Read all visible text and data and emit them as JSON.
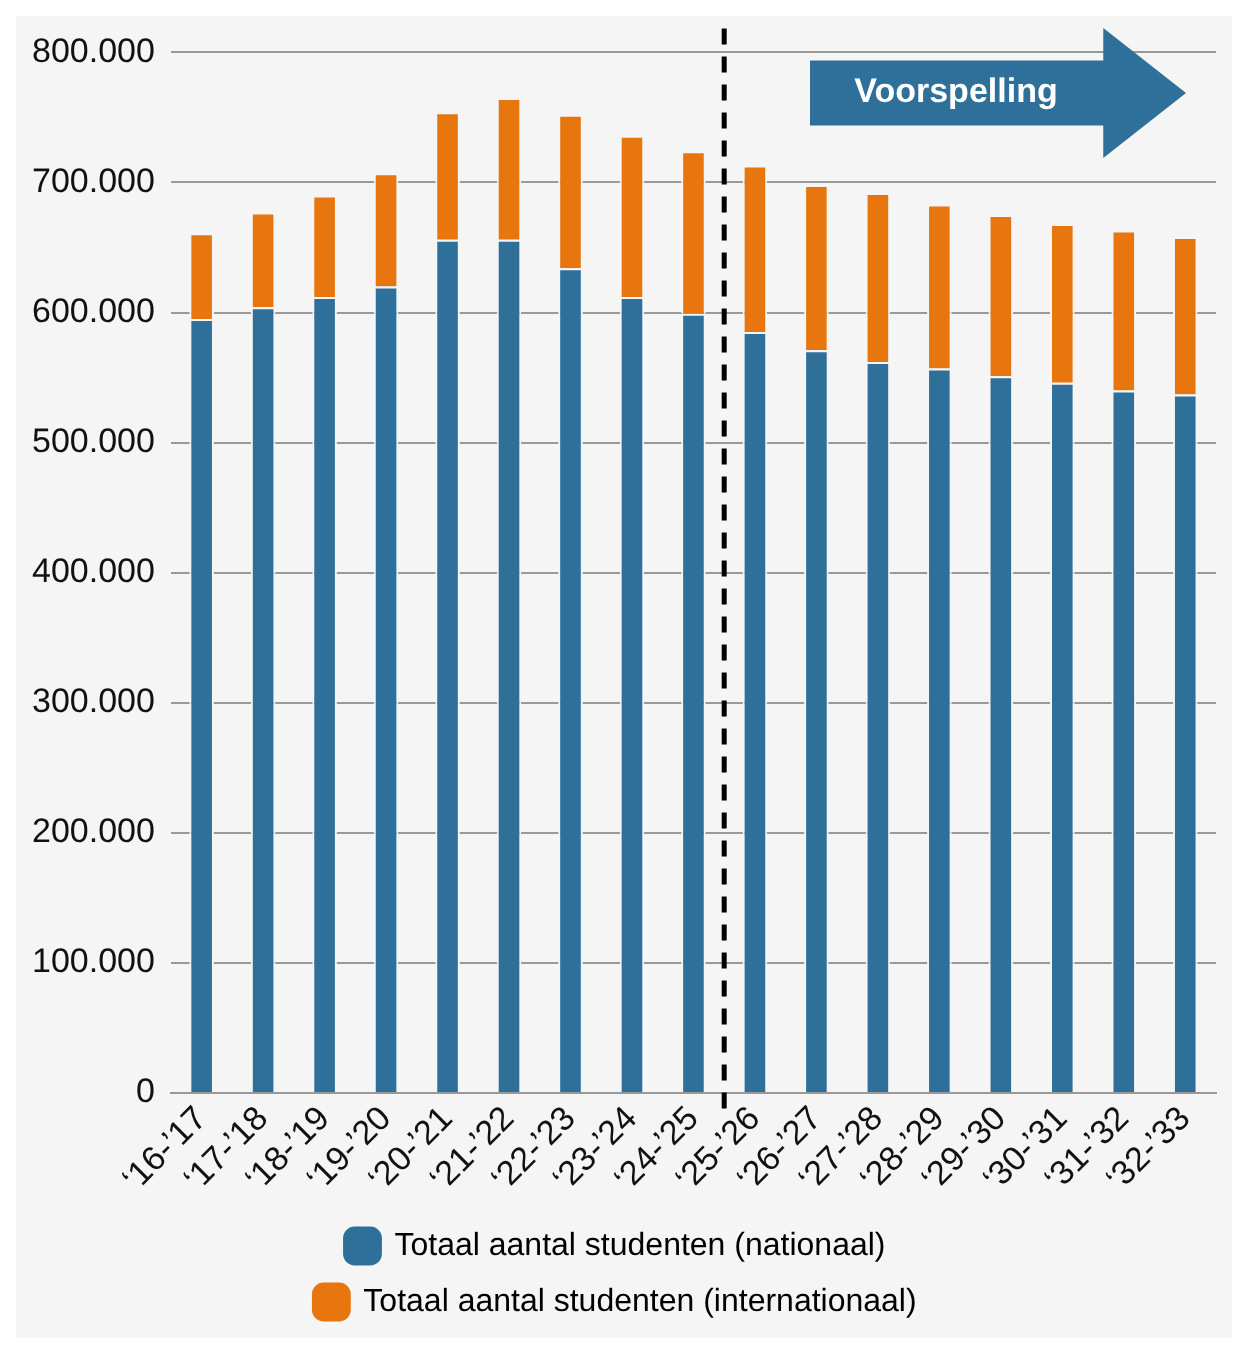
{
  "chart_data": {
    "type": "bar",
    "stacked": true,
    "categories": [
      "‘16-’17",
      "‘17-’18",
      "‘18-’19",
      "‘19-’20",
      "‘20-’21",
      "‘21-’22",
      "‘22-’23",
      "‘23-’24",
      "‘24-’25",
      "‘25-’26",
      "‘26-’27",
      "‘27-’28",
      "‘28-’29",
      "‘29-’30",
      "‘30-’31",
      "‘31-’32",
      "‘32-’33"
    ],
    "series": [
      {
        "name": "Totaal aantal studenten (nationaal)",
        "color": "#2e7099",
        "values": [
          595000,
          604000,
          612000,
          620000,
          656000,
          656000,
          634000,
          612000,
          599000,
          585000,
          571000,
          562000,
          557000,
          551000,
          546000,
          540000,
          537000
        ]
      },
      {
        "name": "Totaal aantal studenten (internationaal)",
        "color": "#e8760f",
        "values": [
          66000,
          73000,
          78000,
          87000,
          98000,
          109000,
          118000,
          124000,
          125000,
          128000,
          127000,
          130000,
          126000,
          124000,
          122000,
          123000,
          121000
        ]
      }
    ],
    "ylim": [
      0,
      800000
    ],
    "yticks": [
      {
        "value": 0,
        "label": "0"
      },
      {
        "value": 100000,
        "label": "100.000"
      },
      {
        "value": 200000,
        "label": "200.000"
      },
      {
        "value": 300000,
        "label": "300.000"
      },
      {
        "value": 400000,
        "label": "400.000"
      },
      {
        "value": 500000,
        "label": "500.000"
      },
      {
        "value": 600000,
        "label": "600.000"
      },
      {
        "value": 700000,
        "label": "700.000"
      },
      {
        "value": 800000,
        "label": "800.000"
      }
    ],
    "grid": "y",
    "legend": "bottom",
    "ref_lines": [
      {
        "axis": "x",
        "value": "‘25-’26",
        "color": "#000000",
        "line_style": "dashed"
      }
    ],
    "annotations": [
      "Voorspelling"
    ]
  }
}
